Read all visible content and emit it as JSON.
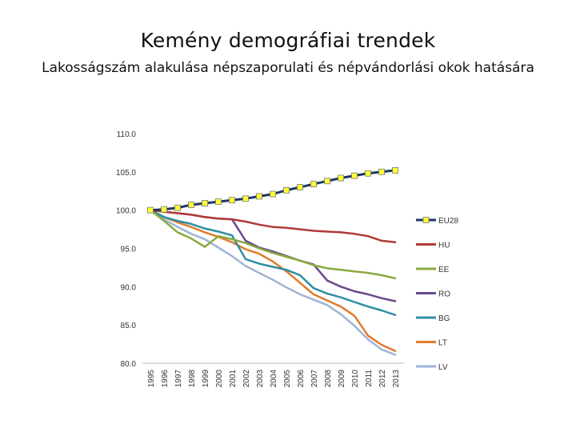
{
  "page": {
    "title": "Kemény demográfiai trendek",
    "subtitle": "Lakosságszám alakulása népszaporulati és népvándorlási okok hatására"
  },
  "chart_data": {
    "type": "line",
    "title": "",
    "xlabel": "",
    "ylabel": "",
    "ylim": [
      80,
      110
    ],
    "y_ticks": [
      "80.0",
      "85.0",
      "90.0",
      "95.0",
      "100.0",
      "105.0",
      "110.0"
    ],
    "x": [
      "1995",
      "1996",
      "1997",
      "1998",
      "1999",
      "2000",
      "2001",
      "2002",
      "2003",
      "2004",
      "2005",
      "2006",
      "2007",
      "2008",
      "2009",
      "2010",
      "2011",
      "2012",
      "2013"
    ],
    "grid": false,
    "legend_position": "right",
    "series": [
      {
        "name": "EU28",
        "color": "#1f3864",
        "marker": "square-yellow",
        "values": [
          100.0,
          100.1,
          100.3,
          100.7,
          100.9,
          101.1,
          101.3,
          101.5,
          101.8,
          102.1,
          102.6,
          103.0,
          103.4,
          103.8,
          104.2,
          104.5,
          104.8,
          105.0,
          105.2
        ]
      },
      {
        "name": "HU",
        "color": "#b03a37",
        "values": [
          100.0,
          99.8,
          99.6,
          99.4,
          99.1,
          98.9,
          98.8,
          98.5,
          98.1,
          97.8,
          97.7,
          97.5,
          97.3,
          97.2,
          97.1,
          96.9,
          96.6,
          96.0,
          95.8
        ]
      },
      {
        "name": "EE",
        "color": "#8aaa3c",
        "values": [
          100.0,
          98.6,
          97.1,
          96.3,
          95.2,
          96.6,
          96.2,
          95.7,
          95.0,
          94.4,
          93.9,
          93.4,
          92.8,
          92.4,
          92.2,
          92.0,
          91.8,
          91.5,
          91.1
        ]
      },
      {
        "name": "RO",
        "color": "#6a4a8c",
        "values": [
          100.0,
          99.8,
          99.6,
          99.4,
          99.1,
          98.9,
          98.8,
          96.0,
          95.1,
          94.6,
          94.0,
          93.4,
          92.9,
          90.8,
          90.0,
          89.4,
          89.0,
          88.5,
          88.1
        ]
      },
      {
        "name": "BG",
        "color": "#2e8fa3",
        "values": [
          100.0,
          99.1,
          98.6,
          98.2,
          97.6,
          97.2,
          96.7,
          93.6,
          93.0,
          92.6,
          92.2,
          91.5,
          89.8,
          89.1,
          88.6,
          88.0,
          87.4,
          86.9,
          86.3
        ]
      },
      {
        "name": "LT",
        "color": "#e07b2c",
        "values": [
          100.0,
          99.1,
          98.4,
          97.8,
          97.1,
          96.5,
          95.8,
          94.9,
          94.3,
          93.3,
          92.0,
          90.5,
          89.0,
          88.2,
          87.4,
          86.2,
          83.6,
          82.4,
          81.6
        ]
      },
      {
        "name": "LV",
        "color": "#9fb4d4",
        "values": [
          100.0,
          98.8,
          97.8,
          96.9,
          96.2,
          95.1,
          94.0,
          92.7,
          91.8,
          90.9,
          89.9,
          89.0,
          88.3,
          87.6,
          86.4,
          84.9,
          83.1,
          81.8,
          81.1
        ]
      }
    ]
  }
}
